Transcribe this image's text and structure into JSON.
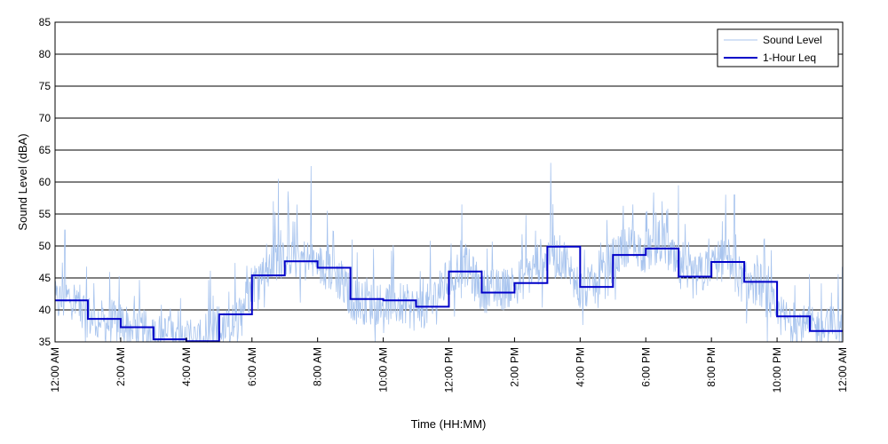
{
  "chart_data": {
    "type": "line",
    "title": "",
    "xlabel": "Time (HH:MM)",
    "ylabel": "Sound Level (dBA)",
    "ylim": [
      35,
      85
    ],
    "xlim_hours": [
      0,
      24
    ],
    "grid": "horizontal",
    "legend_position": "top-right",
    "y_ticks": [
      35,
      40,
      45,
      50,
      55,
      60,
      65,
      70,
      75,
      80,
      85
    ],
    "x_ticks": [
      {
        "hour": 0,
        "label": "12:00 AM"
      },
      {
        "hour": 2,
        "label": "2:00 AM"
      },
      {
        "hour": 4,
        "label": "4:00 AM"
      },
      {
        "hour": 6,
        "label": "6:00 AM"
      },
      {
        "hour": 8,
        "label": "8:00 AM"
      },
      {
        "hour": 10,
        "label": "10:00 AM"
      },
      {
        "hour": 12,
        "label": "12:00 PM"
      },
      {
        "hour": 14,
        "label": "2:00 PM"
      },
      {
        "hour": 16,
        "label": "4:00 PM"
      },
      {
        "hour": 18,
        "label": "6:00 PM"
      },
      {
        "hour": 20,
        "label": "8:00 PM"
      },
      {
        "hour": 22,
        "label": "10:00 PM"
      },
      {
        "hour": 24,
        "label": "12:00 AM"
      }
    ],
    "series": [
      {
        "name": "Sound Level",
        "color": "#a8c4ee",
        "style": "thin-line",
        "hours": [
          0,
          0.5,
          1,
          1.5,
          2,
          2.5,
          3,
          3.5,
          4,
          4.5,
          5,
          5.5,
          6,
          6.5,
          7,
          7.5,
          8,
          8.5,
          9,
          9.5,
          10,
          10.5,
          11,
          11.5,
          12,
          12.5,
          13,
          13.5,
          14,
          14.5,
          15,
          15.5,
          16,
          16.5,
          17,
          17.5,
          18,
          18.5,
          19,
          19.5,
          20,
          20.5,
          21,
          21.5,
          22,
          22.5,
          23,
          23.5,
          24
        ],
        "values": [
          41,
          42,
          39,
          38,
          38,
          37,
          36,
          36,
          35,
          35,
          36,
          38,
          44,
          47,
          49,
          48,
          47,
          46,
          42,
          41,
          41,
          41,
          40,
          41,
          45,
          47,
          43,
          43,
          44,
          46,
          49,
          48,
          43,
          44,
          48,
          50,
          49,
          51,
          46,
          45,
          47,
          48,
          44,
          44,
          39,
          38,
          37,
          37,
          38
        ],
        "peaks": [
          {
            "hour": 0.3,
            "value": 52.5
          },
          {
            "hour": 6.8,
            "value": 60.5
          },
          {
            "hour": 7.8,
            "value": 62.5
          },
          {
            "hour": 8.3,
            "value": 55.5
          },
          {
            "hour": 12.4,
            "value": 56.5
          },
          {
            "hour": 15.1,
            "value": 63
          },
          {
            "hour": 17.6,
            "value": 56.5
          },
          {
            "hour": 18.5,
            "value": 57
          },
          {
            "hour": 19.0,
            "value": 59.5
          },
          {
            "hour": 20.7,
            "value": 58
          }
        ]
      },
      {
        "name": "1-Hour Leq",
        "color": "#0000c8",
        "style": "step",
        "hours": [
          0,
          1,
          2,
          3,
          4,
          5,
          6,
          7,
          8,
          9,
          10,
          11,
          12,
          13,
          14,
          15,
          16,
          17,
          18,
          19,
          20,
          21,
          22,
          23
        ],
        "values": [
          41.5,
          38.6,
          37.3,
          35.4,
          35.1,
          39.3,
          45.4,
          47.6,
          46.6,
          41.7,
          41.5,
          40.5,
          46.0,
          42.7,
          44.2,
          49.9,
          43.6,
          48.6,
          49.6,
          45.2,
          47.5,
          44.4,
          39.0,
          36.7
        ]
      }
    ]
  }
}
